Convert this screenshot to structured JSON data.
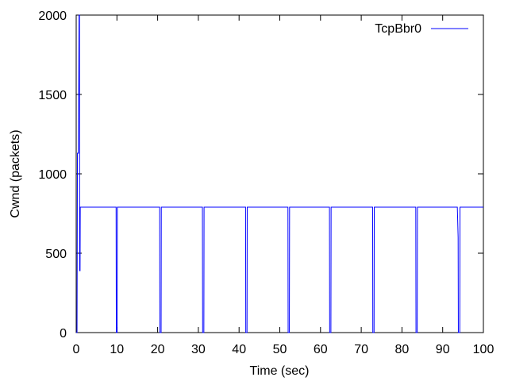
{
  "chart_data": {
    "type": "line",
    "title": "",
    "xlabel": "Time (sec)",
    "ylabel": "Cwnd (packets)",
    "xlim": [
      0,
      100
    ],
    "ylim": [
      0,
      2000
    ],
    "xticks": [
      "0",
      "10",
      "20",
      "30",
      "40",
      "50",
      "60",
      "70",
      "80",
      "90",
      "100"
    ],
    "yticks": [
      "0",
      "500",
      "1000",
      "1500",
      "2000"
    ],
    "grid": false,
    "legend_position": "top-right",
    "series": [
      {
        "name": "TcpBbr0",
        "color": "#0000ff",
        "x": [
          0,
          0.2,
          0.3,
          0.35,
          0.5,
          0.55,
          0.7,
          0.75,
          0.8,
          0.85,
          0.95,
          1.0,
          1.2,
          9.8,
          9.85,
          10.05,
          10.1,
          20.5,
          20.55,
          20.85,
          20.9,
          31.0,
          31.05,
          31.35,
          31.4,
          41.6,
          41.65,
          41.95,
          42.0,
          52.0,
          52.05,
          52.35,
          52.4,
          62.2,
          62.25,
          62.55,
          62.6,
          72.8,
          72.85,
          73.15,
          73.2,
          83.4,
          83.45,
          83.75,
          83.8,
          93.6,
          93.8,
          93.85,
          94.2,
          94.25,
          100
        ],
        "values": [
          0,
          0,
          1130,
          1130,
          1130,
          1130,
          2000,
          2000,
          2000,
          390,
          390,
          790,
          790,
          790,
          0,
          0,
          790,
          790,
          0,
          0,
          790,
          790,
          0,
          0,
          790,
          790,
          0,
          0,
          790,
          790,
          0,
          0,
          790,
          790,
          0,
          0,
          790,
          790,
          0,
          0,
          790,
          790,
          0,
          0,
          790,
          790,
          600,
          0,
          0,
          790,
          790
        ]
      }
    ]
  }
}
